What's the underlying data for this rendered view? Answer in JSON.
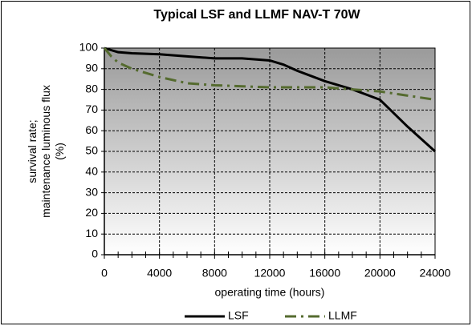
{
  "chart_data": {
    "type": "line",
    "title": "Typical LSF and LLMF NAV-T 70W",
    "x_label": "operating time  (hours)",
    "y_label": [
      "survival rate;",
      "maintenance luminous flux",
      "(%)"
    ],
    "xlim": [
      0,
      24000
    ],
    "xticks": [
      0,
      4000,
      8000,
      12000,
      16000,
      20000,
      24000
    ],
    "ylim": [
      0,
      100
    ],
    "yticks": [
      0,
      10,
      20,
      30,
      40,
      50,
      60,
      70,
      80,
      90,
      100
    ],
    "grid": true,
    "legend": "bottom",
    "series": [
      {
        "name": "LSF",
        "color": "#000000",
        "linestyle": "solid",
        "x": [
          0,
          1000,
          2000,
          4000,
          6000,
          8000,
          10000,
          12000,
          13000,
          14000,
          16000,
          18000,
          20000,
          22000,
          24000
        ],
        "values": [
          100,
          98,
          97.5,
          97,
          96,
          95,
          95,
          94,
          92,
          89,
          84,
          80,
          75,
          62,
          50
        ]
      },
      {
        "name": "LLMF",
        "color": "#556b2f",
        "linestyle": "dashdot",
        "x": [
          0,
          500,
          1000,
          2000,
          4000,
          6000,
          8000,
          10000,
          12000,
          14000,
          16000,
          18000,
          20000,
          22000,
          24000
        ],
        "values": [
          100,
          96,
          93,
          90,
          86,
          83,
          82,
          81.5,
          81,
          81,
          81,
          80,
          79,
          77,
          75
        ]
      }
    ]
  }
}
